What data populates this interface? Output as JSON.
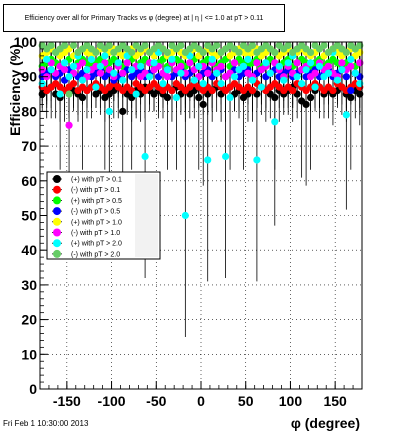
{
  "footer": "Fri Feb  1 10:30:00 2013",
  "chart_data": {
    "type": "scatter",
    "title": "Efficiency over all for Primary Tracks vs φ (degree) at | η | <= 1.0 at pT > 0.11",
    "xlabel": "φ (degree)",
    "ylabel": "Efficiency (%)",
    "xlim": [
      -180,
      180
    ],
    "ylim": [
      0,
      100
    ],
    "grid": true,
    "legend_position": "center-left",
    "x_ticks": [
      -150,
      -100,
      -50,
      0,
      50,
      100,
      150
    ],
    "y_ticks": [
      0,
      10,
      20,
      30,
      40,
      50,
      60,
      70,
      80,
      90,
      100
    ],
    "x_tick_labels": [
      "-150",
      "-100",
      "-50",
      "0",
      "50",
      "100",
      "150"
    ],
    "y_tick_labels": [
      "0",
      "10",
      "20",
      "30",
      "40",
      "50",
      "60",
      "70",
      "80",
      "90",
      "100"
    ],
    "phi_step": 5,
    "phi_start": -177.5,
    "series": [
      {
        "name": "(+) with pT > 0.1",
        "color": "#000000",
        "values": [
          85,
          86,
          87,
          85,
          84,
          86,
          87,
          86,
          85,
          84,
          86,
          87,
          85,
          86,
          84,
          85,
          86,
          87,
          80,
          85,
          84,
          86,
          85,
          87,
          86,
          85,
          86,
          85,
          84,
          86,
          87,
          85,
          86,
          85,
          86,
          84,
          82,
          85,
          86,
          87,
          85,
          86,
          87,
          85,
          86,
          84,
          85,
          86,
          85,
          87,
          86,
          85,
          84,
          86,
          85,
          86,
          87,
          85,
          83,
          82,
          84,
          86,
          87,
          85,
          86,
          85,
          86,
          87,
          85,
          84,
          86,
          85
        ]
      },
      {
        "name": "(-) with pT > 0.1",
        "color": "#ff0000",
        "values": [
          87,
          86,
          87,
          88,
          87,
          86,
          87,
          88,
          86,
          87,
          86,
          87,
          88,
          87,
          86,
          87,
          88,
          87,
          86,
          87,
          86,
          88,
          87,
          86,
          87,
          88,
          87,
          86,
          87,
          86,
          88,
          87,
          86,
          87,
          88,
          87,
          86,
          87,
          86,
          88,
          87,
          86,
          87,
          88,
          87,
          86,
          87,
          86,
          88,
          87,
          86,
          87,
          88,
          87,
          86,
          87,
          86,
          88,
          87,
          86,
          87,
          88,
          87,
          86,
          87,
          86,
          88,
          87,
          86,
          87,
          88,
          87
        ]
      },
      {
        "name": "(+) with pT > 0.5",
        "color": "#00ff00",
        "values": [
          93,
          94,
          95,
          94,
          93,
          94,
          95,
          93,
          94,
          95,
          94,
          93,
          94,
          95,
          93,
          94,
          95,
          94,
          93,
          94,
          95,
          93,
          94,
          95,
          94,
          93,
          94,
          95,
          93,
          94,
          95,
          94,
          93,
          94,
          95,
          93,
          94,
          95,
          94,
          93,
          94,
          95,
          93,
          94,
          95,
          94,
          93,
          94,
          95,
          93,
          94,
          95,
          94,
          93,
          94,
          95,
          93,
          94,
          95,
          94,
          93,
          94,
          95,
          93,
          94,
          95,
          94,
          93,
          94,
          95,
          93,
          94
        ]
      },
      {
        "name": "(-) with pT > 0.5",
        "color": "#0000ff",
        "values": [
          90,
          91,
          92,
          90,
          91,
          89,
          92,
          91,
          90,
          91,
          92,
          90,
          91,
          92,
          90,
          91,
          89,
          90,
          91,
          92,
          90,
          91,
          92,
          90,
          91,
          92,
          90,
          91,
          92,
          90,
          91,
          92,
          90,
          91,
          92,
          90,
          91,
          92,
          90,
          91,
          92,
          90,
          91,
          92,
          90,
          91,
          92,
          90,
          91,
          92,
          90,
          91,
          92,
          90,
          91,
          92,
          90,
          91,
          92,
          90,
          91,
          92,
          90,
          91,
          92,
          90,
          91,
          92,
          90,
          86,
          91,
          90
        ]
      },
      {
        "name": "(+) with pT > 1.0",
        "color": "#ffff00",
        "values": [
          96,
          97,
          98,
          97,
          96,
          97,
          98,
          96,
          97,
          98,
          97,
          96,
          97,
          98,
          96,
          97,
          98,
          97,
          96,
          97,
          98,
          96,
          97,
          98,
          97,
          96,
          97,
          98,
          96,
          97,
          98,
          97,
          96,
          97,
          98,
          96,
          97,
          98,
          97,
          96,
          97,
          98,
          96,
          97,
          98,
          97,
          96,
          97,
          98,
          96,
          97,
          98,
          97,
          96,
          97,
          98,
          96,
          97,
          98,
          97,
          96,
          97,
          98,
          96,
          97,
          98,
          97,
          96,
          97,
          98,
          96,
          97
        ]
      },
      {
        "name": "(-) with pT > 1.0",
        "color": "#ff00ff",
        "values": [
          92,
          90,
          94,
          91,
          93,
          92,
          76,
          91,
          93,
          94,
          90,
          92,
          93,
          91,
          94,
          92,
          90,
          93,
          91,
          94,
          92,
          93,
          90,
          91,
          94,
          92,
          93,
          91,
          90,
          94,
          92,
          93,
          91,
          94,
          92,
          90,
          93,
          91,
          94,
          92,
          93,
          90,
          91,
          94,
          92,
          93,
          91,
          90,
          94,
          92,
          93,
          91,
          94,
          92,
          90,
          93,
          91,
          94,
          92,
          93,
          90,
          91,
          94,
          92,
          93,
          91,
          90,
          94,
          92,
          93,
          91,
          94
        ]
      },
      {
        "name": "(+) with pT > 2.0",
        "color": "#00ffff",
        "values": [
          88,
          95,
          92,
          97,
          85,
          94,
          90,
          93,
          96,
          89,
          92,
          95,
          87,
          93,
          96,
          80,
          91,
          94,
          89,
          96,
          92,
          85,
          93,
          67,
          90,
          94,
          97,
          88,
          92,
          95,
          84,
          91,
          50,
          96,
          89,
          93,
          88,
          66,
          95,
          91,
          88,
          67,
          84,
          90,
          92,
          93,
          95,
          89,
          66,
          87,
          94,
          91,
          77,
          93,
          89,
          94,
          96,
          90,
          88,
          92,
          94,
          87,
          93,
          90,
          91,
          97,
          89,
          92,
          79,
          95,
          91,
          88
        ]
      },
      {
        "name": "(-) with pT > 2.0",
        "color": "#66cc66",
        "values": [
          99,
          98,
          99,
          97,
          98,
          99,
          85,
          99,
          97,
          98,
          99,
          98,
          97,
          99,
          98,
          99,
          97,
          98,
          99,
          98,
          97,
          99,
          98,
          99,
          97,
          98,
          99,
          98,
          97,
          99,
          98,
          99,
          97,
          98,
          99,
          98,
          97,
          99,
          98,
          99,
          97,
          98,
          99,
          98,
          97,
          99,
          98,
          99,
          97,
          98,
          99,
          98,
          97,
          99,
          98,
          99,
          97,
          98,
          99,
          98,
          97,
          99,
          98,
          99,
          97,
          98,
          99,
          98,
          97,
          99,
          98,
          99
        ]
      }
    ]
  }
}
